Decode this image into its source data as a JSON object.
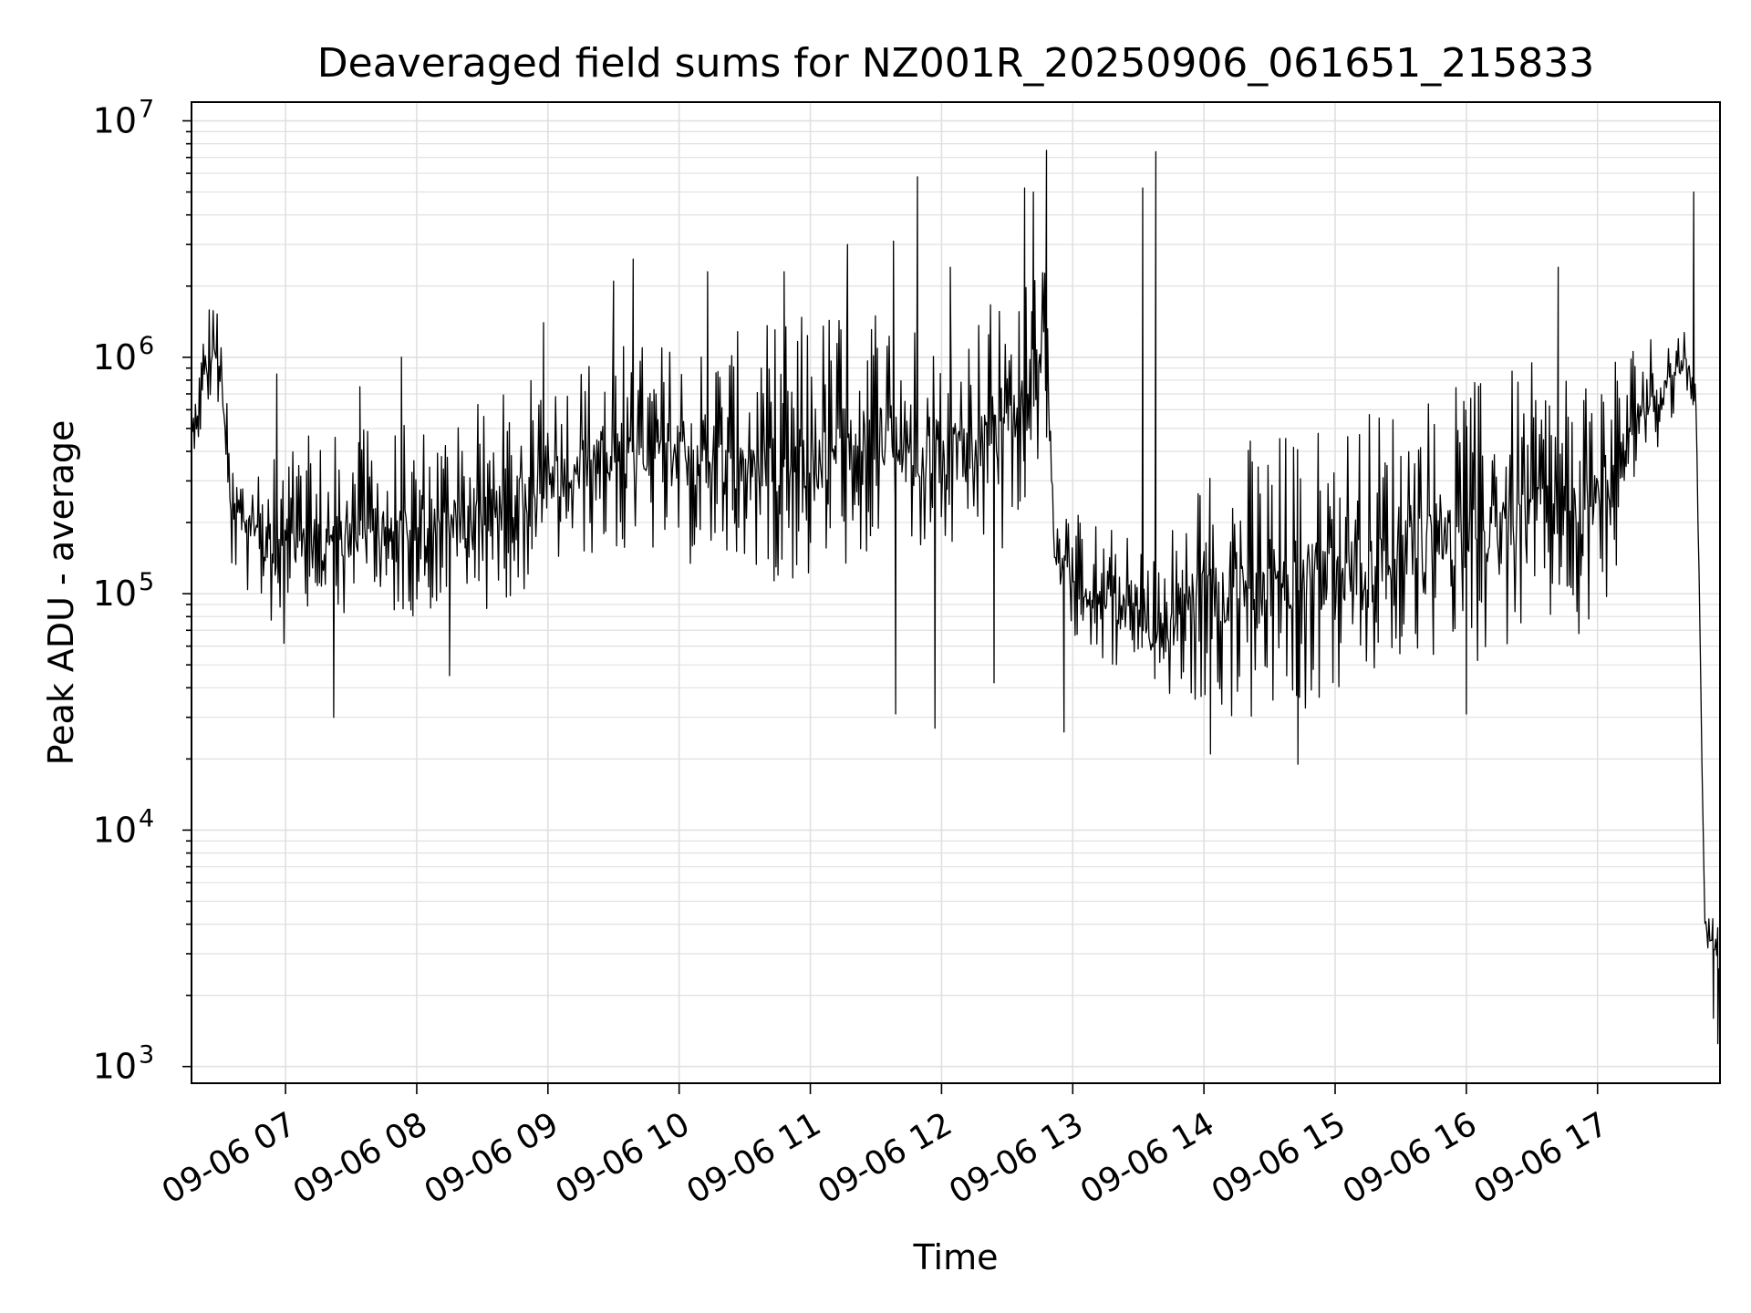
{
  "chart_data": {
    "type": "line",
    "title": "Deaveraged field sums for NZ001R_20250906_061651_215833",
    "xlabel": "Time",
    "ylabel": "Peak ADU - average",
    "yscale": "log",
    "ylim": [
      850,
      12000000
    ],
    "xlim": [
      "2025-09-06 06:17",
      "2025-09-06 17:56"
    ],
    "grid": true,
    "legend": "none",
    "line_color": "#000000",
    "grid_color": "#e0e0e0",
    "x_ticks": [
      {
        "at": "2025-09-06 07:00",
        "label": "09-06 07"
      },
      {
        "at": "2025-09-06 08:00",
        "label": "09-06 08"
      },
      {
        "at": "2025-09-06 09:00",
        "label": "09-06 09"
      },
      {
        "at": "2025-09-06 10:00",
        "label": "09-06 10"
      },
      {
        "at": "2025-09-06 11:00",
        "label": "09-06 11"
      },
      {
        "at": "2025-09-06 12:00",
        "label": "09-06 12"
      },
      {
        "at": "2025-09-06 13:00",
        "label": "09-06 13"
      },
      {
        "at": "2025-09-06 14:00",
        "label": "09-06 14"
      },
      {
        "at": "2025-09-06 15:00",
        "label": "09-06 15"
      },
      {
        "at": "2025-09-06 16:00",
        "label": "09-06 16"
      },
      {
        "at": "2025-09-06 17:00",
        "label": "09-06 17"
      }
    ],
    "y_ticks": [
      {
        "value": 1000,
        "base": "10",
        "exp": "3"
      },
      {
        "value": 10000,
        "base": "10",
        "exp": "4"
      },
      {
        "value": 100000,
        "base": "10",
        "exp": "5"
      },
      {
        "value": 1000000,
        "base": "10",
        "exp": "6"
      },
      {
        "value": 10000000,
        "base": "10",
        "exp": "7"
      }
    ],
    "series": [
      {
        "envelope": [
          {
            "t": "2025-09-06 06:17",
            "lo": 400000,
            "hi": 550000
          },
          {
            "t": "2025-09-06 06:23",
            "lo": 450000,
            "hi": 1600000
          },
          {
            "t": "2025-09-06 06:27",
            "lo": 700000,
            "hi": 2100000
          },
          {
            "t": "2025-09-06 06:31",
            "lo": 500000,
            "hi": 1200000
          },
          {
            "t": "2025-09-06 06:35",
            "lo": 120000,
            "hi": 400000
          },
          {
            "t": "2025-09-06 07:00",
            "lo": 60000,
            "hi": 450000
          },
          {
            "t": "2025-09-06 07:30",
            "lo": 70000,
            "hi": 500000
          },
          {
            "t": "2025-09-06 08:00",
            "lo": 80000,
            "hi": 550000
          },
          {
            "t": "2025-09-06 08:30",
            "lo": 80000,
            "hi": 650000
          },
          {
            "t": "2025-09-06 09:00",
            "lo": 120000,
            "hi": 900000
          },
          {
            "t": "2025-09-06 09:30",
            "lo": 150000,
            "hi": 1200000
          },
          {
            "t": "2025-09-06 10:00",
            "lo": 130000,
            "hi": 1200000
          },
          {
            "t": "2025-09-06 10:30",
            "lo": 120000,
            "hi": 1300000
          },
          {
            "t": "2025-09-06 11:00",
            "lo": 100000,
            "hi": 1600000
          },
          {
            "t": "2025-09-06 11:30",
            "lo": 150000,
            "hi": 2000000
          },
          {
            "t": "2025-09-06 12:00",
            "lo": 130000,
            "hi": 1200000
          },
          {
            "t": "2025-09-06 12:30",
            "lo": 150000,
            "hi": 2200000
          },
          {
            "t": "2025-09-06 12:48",
            "lo": 400000,
            "hi": 4000000
          },
          {
            "t": "2025-09-06 12:52",
            "lo": 80000,
            "hi": 250000
          },
          {
            "t": "2025-09-06 13:15",
            "lo": 50000,
            "hi": 200000
          },
          {
            "t": "2025-09-06 13:40",
            "lo": 35000,
            "hi": 150000
          },
          {
            "t": "2025-09-06 14:00",
            "lo": 30000,
            "hi": 450000
          },
          {
            "t": "2025-09-06 14:30",
            "lo": 25000,
            "hi": 500000
          },
          {
            "t": "2025-09-06 15:00",
            "lo": 35000,
            "hi": 550000
          },
          {
            "t": "2025-09-06 15:30",
            "lo": 45000,
            "hi": 700000
          },
          {
            "t": "2025-09-06 16:00",
            "lo": 50000,
            "hi": 800000
          },
          {
            "t": "2025-09-06 16:30",
            "lo": 60000,
            "hi": 950000
          },
          {
            "t": "2025-09-06 17:00",
            "lo": 70000,
            "hi": 1100000
          },
          {
            "t": "2025-09-06 17:20",
            "lo": 300000,
            "hi": 1300000
          },
          {
            "t": "2025-09-06 17:40",
            "lo": 700000,
            "hi": 1400000
          },
          {
            "t": "2025-09-06 17:45",
            "lo": 600000,
            "hi": 1000000
          },
          {
            "t": "2025-09-06 17:49",
            "lo": 3500,
            "hi": 5000
          },
          {
            "t": "2025-09-06 17:56",
            "lo": 1600,
            "hi": 4200
          }
        ],
        "spikes": [
          {
            "t": "2025-09-06 06:56",
            "value": 850000
          },
          {
            "t": "2025-09-06 07:22",
            "value": 30000
          },
          {
            "t": "2025-09-06 07:34",
            "value": 750000
          },
          {
            "t": "2025-09-06 07:53",
            "value": 1000000
          },
          {
            "t": "2025-09-06 08:15",
            "value": 45000
          },
          {
            "t": "2025-09-06 08:58",
            "value": 1400000
          },
          {
            "t": "2025-09-06 09:30",
            "value": 2100000
          },
          {
            "t": "2025-09-06 09:39",
            "value": 2600000
          },
          {
            "t": "2025-09-06 10:13",
            "value": 2300000
          },
          {
            "t": "2025-09-06 10:48",
            "value": 2300000
          },
          {
            "t": "2025-09-06 11:17",
            "value": 3000000
          },
          {
            "t": "2025-09-06 11:38",
            "value": 3100000
          },
          {
            "t": "2025-09-06 11:39",
            "value": 31000
          },
          {
            "t": "2025-09-06 11:49",
            "value": 5800000
          },
          {
            "t": "2025-09-06 11:57",
            "value": 27000
          },
          {
            "t": "2025-09-06 12:04",
            "value": 2400000
          },
          {
            "t": "2025-09-06 12:24",
            "value": 42000
          },
          {
            "t": "2025-09-06 12:38",
            "value": 5200000
          },
          {
            "t": "2025-09-06 12:42",
            "value": 5000000
          },
          {
            "t": "2025-09-06 12:48",
            "value": 7500000
          },
          {
            "t": "2025-09-06 12:56",
            "value": 26000
          },
          {
            "t": "2025-09-06 13:32",
            "value": 5200000
          },
          {
            "t": "2025-09-06 13:38",
            "value": 7400000
          },
          {
            "t": "2025-09-06 14:03",
            "value": 21000
          },
          {
            "t": "2025-09-06 14:43",
            "value": 19000
          },
          {
            "t": "2025-09-06 16:00",
            "value": 31000
          },
          {
            "t": "2025-09-06 16:42",
            "value": 2400000
          },
          {
            "t": "2025-09-06 17:44",
            "value": 5000000
          },
          {
            "t": "2025-09-06 17:53",
            "value": 1600
          },
          {
            "t": "2025-09-06 17:55",
            "value": 1250
          }
        ]
      }
    ]
  }
}
